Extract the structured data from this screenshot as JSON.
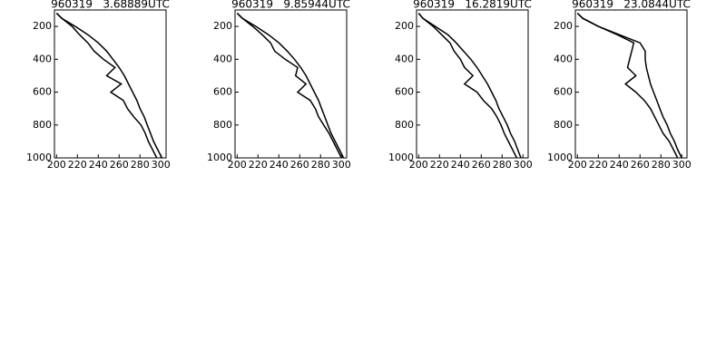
{
  "chart_data": [
    {
      "type": "line",
      "title": "960319   3.68889UTC",
      "xlim": [
        198,
        305
      ],
      "ylim": [
        100,
        1000
      ],
      "y_reversed": true,
      "xticks": [
        200,
        220,
        240,
        260,
        280,
        300
      ],
      "yticks": [
        200,
        400,
        600,
        800,
        1000
      ],
      "series": [
        {
          "color": "#000000",
          "x": [
            301,
            297,
            293,
            290,
            287,
            284,
            280,
            277,
            273,
            269,
            265,
            260,
            254,
            248,
            240,
            230,
            218,
            205,
            200
          ],
          "values": [
            1000,
            950,
            900,
            850,
            800,
            750,
            700,
            650,
            600,
            550,
            500,
            450,
            400,
            350,
            300,
            250,
            200,
            150,
            120
          ]
        },
        {
          "color": "#000000",
          "x": [
            296,
            292,
            288,
            285,
            281,
            274,
            268,
            264,
            252,
            262,
            248,
            256,
            245,
            236,
            230,
            222,
            215,
            205,
            200
          ],
          "values": [
            1000,
            950,
            900,
            850,
            800,
            750,
            700,
            650,
            600,
            550,
            500,
            450,
            400,
            350,
            300,
            250,
            200,
            150,
            120
          ]
        }
      ]
    },
    {
      "type": "line",
      "title": "960319   9.85944UTC",
      "xlim": [
        198,
        305
      ],
      "ylim": [
        100,
        1000
      ],
      "y_reversed": true,
      "xticks": [
        200,
        220,
        240,
        260,
        280,
        300
      ],
      "yticks": [
        200,
        400,
        600,
        800,
        1000
      ],
      "series": [
        {
          "color": "#000000",
          "x": [
            302,
            298,
            294,
            290,
            287,
            284,
            281,
            278,
            274,
            270,
            266,
            261,
            255,
            248,
            240,
            230,
            218,
            205,
            200
          ],
          "values": [
            1000,
            950,
            900,
            850,
            800,
            750,
            700,
            650,
            600,
            550,
            500,
            450,
            400,
            350,
            300,
            250,
            200,
            150,
            120
          ]
        },
        {
          "color": "#000000",
          "x": [
            300,
            296,
            292,
            288,
            283,
            278,
            275,
            270,
            258,
            266,
            256,
            258,
            246,
            236,
            232,
            224,
            215,
            205,
            200
          ],
          "values": [
            1000,
            950,
            900,
            850,
            800,
            750,
            700,
            650,
            600,
            550,
            500,
            450,
            400,
            350,
            300,
            250,
            200,
            150,
            120
          ]
        }
      ]
    },
    {
      "type": "line",
      "title": "960319   16.2819UTC",
      "xlim": [
        198,
        305
      ],
      "ylim": [
        100,
        1000
      ],
      "y_reversed": true,
      "xticks": [
        200,
        220,
        240,
        260,
        280,
        300
      ],
      "yticks": [
        200,
        400,
        600,
        800,
        1000
      ],
      "series": [
        {
          "color": "#000000",
          "x": [
            298,
            295,
            292,
            288,
            285,
            281,
            277,
            274,
            270,
            266,
            261,
            256,
            250,
            243,
            236,
            228,
            216,
            204,
            200
          ],
          "values": [
            1000,
            950,
            900,
            850,
            800,
            750,
            700,
            650,
            600,
            550,
            500,
            450,
            400,
            350,
            300,
            250,
            200,
            150,
            120
          ]
        },
        {
          "color": "#000000",
          "x": [
            294,
            290,
            286,
            282,
            279,
            275,
            270,
            262,
            256,
            244,
            252,
            244,
            240,
            234,
            230,
            222,
            214,
            204,
            200
          ],
          "values": [
            1000,
            950,
            900,
            850,
            800,
            750,
            700,
            650,
            600,
            550,
            500,
            450,
            400,
            350,
            300,
            250,
            200,
            150,
            120
          ]
        }
      ]
    },
    {
      "type": "line",
      "title": "960319   23.0844UTC",
      "xlim": [
        198,
        305
      ],
      "ylim": [
        100,
        1000
      ],
      "y_reversed": true,
      "xticks": [
        200,
        220,
        240,
        260,
        280,
        300
      ],
      "yticks": [
        200,
        400,
        600,
        800,
        1000
      ],
      "series": [
        {
          "color": "#000000",
          "x": [
            300,
            296,
            293,
            289,
            286,
            282,
            279,
            276,
            273,
            270,
            268,
            266,
            265,
            265,
            260,
            240,
            220,
            205,
            200
          ],
          "values": [
            1000,
            950,
            900,
            850,
            800,
            750,
            700,
            650,
            600,
            550,
            500,
            450,
            400,
            350,
            300,
            250,
            200,
            150,
            120
          ]
        },
        {
          "color": "#000000",
          "x": [
            296,
            292,
            288,
            282,
            278,
            274,
            270,
            264,
            256,
            246,
            256,
            248,
            250,
            252,
            254,
            238,
            220,
            205,
            200
          ],
          "values": [
            1000,
            950,
            900,
            850,
            800,
            750,
            700,
            650,
            600,
            550,
            500,
            450,
            400,
            350,
            300,
            250,
            200,
            150,
            120
          ]
        }
      ]
    }
  ]
}
